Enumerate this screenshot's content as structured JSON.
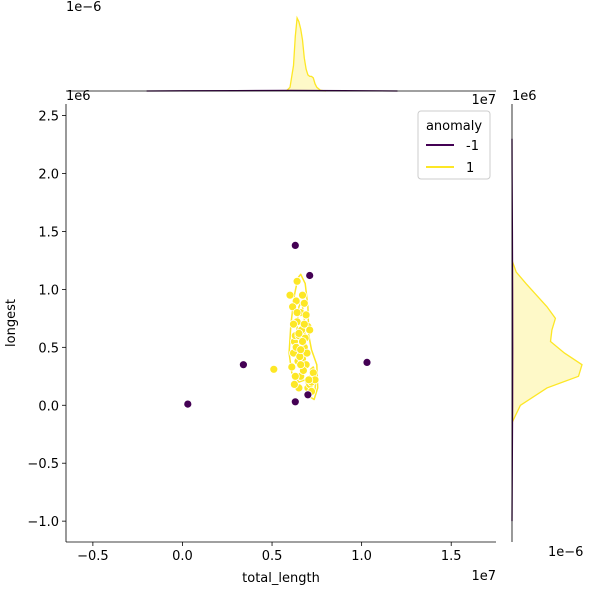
{
  "chart_data": {
    "type": "scatter",
    "xlabel": "total_length",
    "ylabel": "longest",
    "x_offset_label": "1e7",
    "y_offset_label": "1e6",
    "top_marginal_offset_label": "1e−6",
    "right_marginal_offset_label": "1e−6",
    "right_marginal_top_label": "1e6",
    "top_marginal_right_label": "1e7",
    "xlim": [
      -6500000,
      17500000
    ],
    "ylim": [
      -1180000,
      2600000
    ],
    "xticks": [
      -5000000,
      0,
      5000000,
      10000000,
      15000000
    ],
    "xtick_labels": [
      "−0.5",
      "0.0",
      "0.5",
      "1.0",
      "1.5"
    ],
    "yticks": [
      -1000000,
      -500000,
      0,
      500000,
      1000000,
      1500000,
      2000000,
      2500000
    ],
    "ytick_labels": [
      "−1.0",
      "−0.5",
      "0.0",
      "0.5",
      "1.0",
      "1.5",
      "2.0",
      "2.5"
    ],
    "legend": {
      "title": "anomaly",
      "placement": "top-right",
      "entries": [
        {
          "label": "-1",
          "color": "#440154"
        },
        {
          "label": "1",
          "color": "#fde725"
        }
      ]
    },
    "series": [
      {
        "name": "-1",
        "color": "#440154",
        "x": [
          300000,
          3400000,
          6300000,
          7100000,
          10300000,
          6300000,
          7000000
        ],
        "y": [
          10000,
          350000,
          1380000,
          1120000,
          370000,
          30000,
          90000
        ]
      },
      {
        "name": "1",
        "color": "#fde725",
        "x": [
          5100000,
          6000000,
          6100000,
          6200000,
          6250000,
          6300000,
          6350000,
          6400000,
          6400000,
          6500000,
          6500000,
          6600000,
          6600000,
          6700000,
          6700000,
          6800000,
          6800000,
          6900000,
          6900000,
          7000000,
          7000000,
          7100000,
          7100000,
          7200000,
          7300000,
          7400000,
          6200000,
          6300000,
          6450000,
          6550000,
          6650000,
          6750000,
          6850000,
          6950000,
          7050000,
          6150000,
          6250000,
          6350000,
          6600000,
          6800000,
          6400000,
          6700000,
          7200000,
          6500000,
          6600000
        ],
        "y": [
          310000,
          950000,
          330000,
          450000,
          550000,
          600000,
          900000,
          720000,
          1070000,
          150000,
          600000,
          800000,
          250000,
          950000,
          400000,
          880000,
          500000,
          780000,
          350000,
          680000,
          150000,
          180000,
          650000,
          200000,
          280000,
          220000,
          700000,
          250000,
          380000,
          420000,
          650000,
          300000,
          580000,
          450000,
          220000,
          850000,
          180000,
          500000,
          350000,
          700000,
          800000,
          550000,
          120000,
          620000,
          480000
        ]
      }
    ],
    "kde_levels": [
      {
        "color": "#fde725",
        "points": [
          [
            6600000,
            1130000
          ],
          [
            6850000,
            1050000
          ],
          [
            7000000,
            850000
          ],
          [
            7050000,
            600000
          ],
          [
            7200000,
            480000
          ],
          [
            7500000,
            350000
          ],
          [
            7550000,
            150000
          ],
          [
            7350000,
            50000
          ],
          [
            7050000,
            80000
          ],
          [
            6850000,
            220000
          ],
          [
            6500000,
            200000
          ],
          [
            6100000,
            280000
          ],
          [
            5950000,
            450000
          ],
          [
            6050000,
            700000
          ],
          [
            6250000,
            950000
          ],
          [
            6450000,
            1100000
          ]
        ]
      },
      {
        "color": "#fde725",
        "points": [
          [
            6650000,
            900000
          ],
          [
            6800000,
            750000
          ],
          [
            6850000,
            500000
          ],
          [
            6750000,
            350000
          ],
          [
            6550000,
            320000
          ],
          [
            6400000,
            450000
          ],
          [
            6400000,
            700000
          ],
          [
            6500000,
            850000
          ]
        ]
      },
      {
        "color": "#fde725",
        "points": [
          [
            7300000,
            330000
          ],
          [
            7450000,
            250000
          ],
          [
            7400000,
            130000
          ],
          [
            7200000,
            120000
          ],
          [
            7100000,
            220000
          ],
          [
            7150000,
            310000
          ]
        ]
      }
    ],
    "top_marginal": {
      "series": [
        {
          "name": "1",
          "color": "#fde725",
          "x": [
            5800000,
            6000000,
            6200000,
            6300000,
            6400000,
            6500000,
            6600000,
            6700000,
            6800000,
            6900000,
            7000000,
            7100000,
            7200000,
            7300000,
            7400000,
            7500000,
            7700000,
            8000000
          ],
          "density": [
            0.0,
            0.05,
            0.35,
            0.75,
            1.0,
            0.95,
            0.85,
            0.7,
            0.45,
            0.3,
            0.22,
            0.2,
            0.2,
            0.18,
            0.1,
            0.05,
            0.01,
            0.0
          ]
        },
        {
          "name": "-1",
          "color": "#440154",
          "x": [
            -2000000,
            0,
            3000000,
            6000000,
            9000000,
            12000000
          ],
          "density": [
            0.0,
            0.003,
            0.006,
            0.008,
            0.005,
            0.0
          ]
        }
      ]
    },
    "right_marginal": {
      "series": [
        {
          "name": "1",
          "color": "#fde725",
          "y": [
            -150000,
            0,
            150000,
            250000,
            350000,
            450000,
            550000,
            650000,
            750000,
            850000,
            950000,
            1050000,
            1150000,
            1250000
          ],
          "density": [
            0.0,
            0.12,
            0.5,
            0.95,
            1.0,
            0.75,
            0.55,
            0.57,
            0.62,
            0.5,
            0.35,
            0.2,
            0.06,
            0.0
          ]
        },
        {
          "name": "-1",
          "color": "#440154",
          "y": [
            -1000000,
            -500000,
            0,
            500000,
            1000000,
            1500000,
            2000000,
            2300000
          ],
          "density": [
            0.0,
            0.004,
            0.008,
            0.01,
            0.008,
            0.005,
            0.002,
            0.0
          ]
        }
      ]
    }
  }
}
